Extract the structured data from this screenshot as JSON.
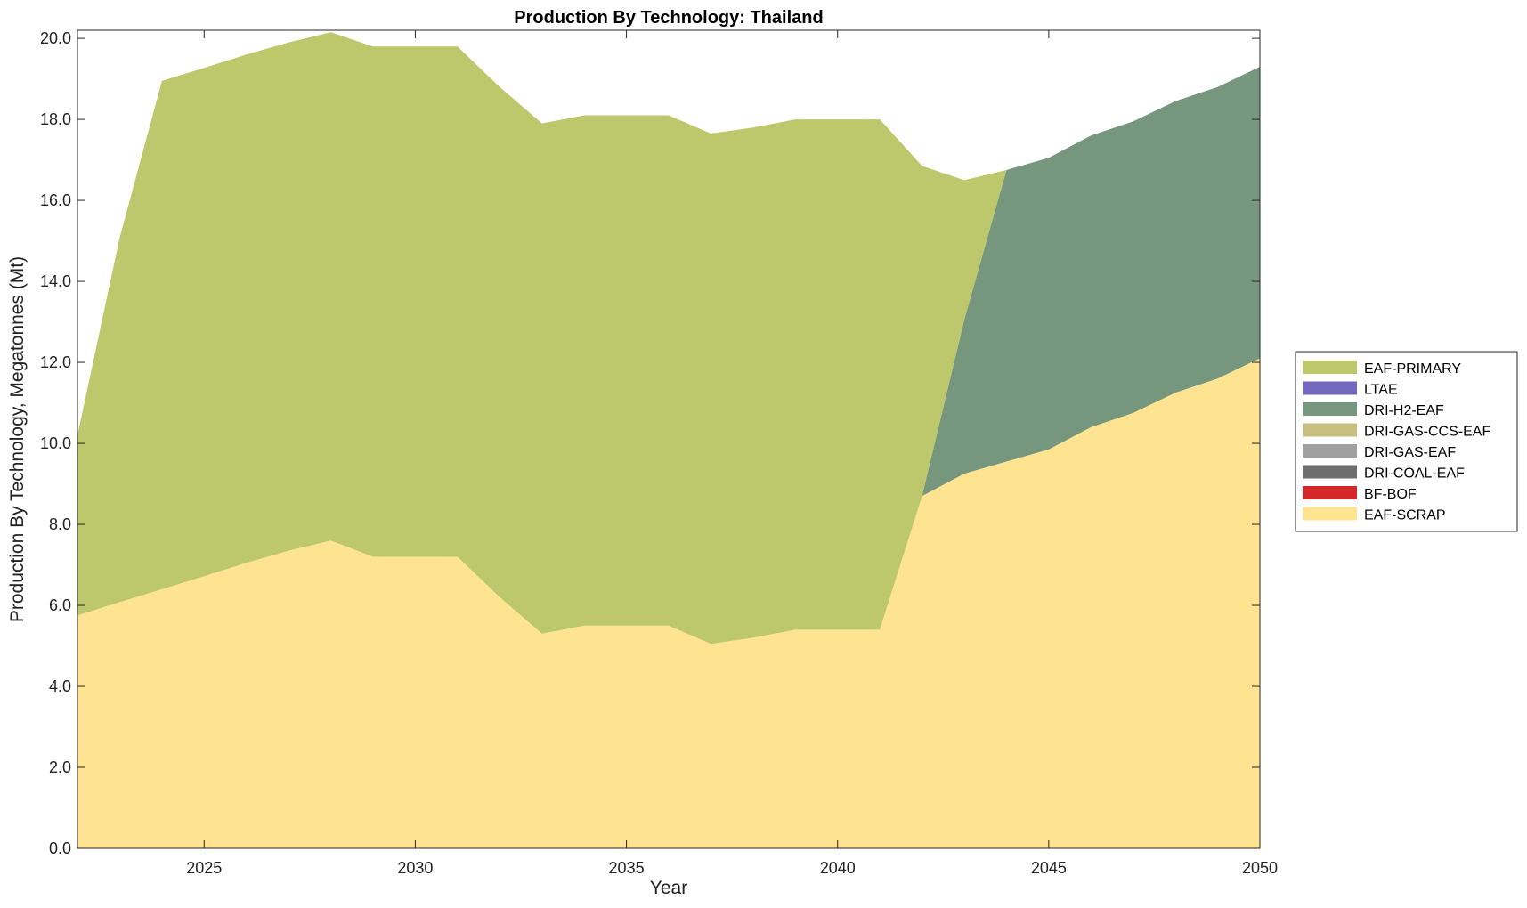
{
  "chart_data": {
    "type": "area",
    "title": "Production By Technology: Thailand",
    "xlabel": "Year",
    "ylabel": "Production By Technology, Megatonnes (Mt)",
    "xlim": [
      2022,
      2050
    ],
    "ylim": [
      0,
      20.2
    ],
    "xticks": [
      2025,
      2030,
      2035,
      2040,
      2045,
      2050
    ],
    "yticks": [
      0,
      2,
      4,
      6,
      8,
      10,
      12,
      14,
      16,
      18,
      20
    ],
    "ytick_labels": [
      "0.0",
      "2.0",
      "4.0",
      "6.0",
      "8.0",
      "10.0",
      "12.0",
      "14.0",
      "16.0",
      "18.0",
      "20.0"
    ],
    "grid": false,
    "legend_position": "right",
    "stacked": true,
    "x": [
      2022,
      2023,
      2024,
      2025,
      2026,
      2027,
      2028,
      2029,
      2030,
      2031,
      2032,
      2033,
      2034,
      2035,
      2036,
      2037,
      2038,
      2039,
      2040,
      2041,
      2042,
      2043,
      2044,
      2045,
      2046,
      2047,
      2048,
      2049,
      2050
    ],
    "series": [
      {
        "name": "EAF-SCRAP",
        "color": "#FEE391",
        "values": [
          5.75,
          6.08,
          6.4,
          6.72,
          7.05,
          7.35,
          7.6,
          7.2,
          7.2,
          7.2,
          6.2,
          5.3,
          5.5,
          5.5,
          5.5,
          5.05,
          5.2,
          5.4,
          5.4,
          5.4,
          8.7,
          9.25,
          9.55,
          9.85,
          10.4,
          10.75,
          11.25,
          11.6,
          12.1
        ]
      },
      {
        "name": "BF-BOF",
        "color": "#D62728",
        "values": [
          0,
          0,
          0,
          0,
          0,
          0,
          0,
          0,
          0,
          0,
          0,
          0,
          0,
          0,
          0,
          0,
          0,
          0,
          0,
          0,
          0,
          0,
          0,
          0,
          0,
          0,
          0,
          0,
          0
        ]
      },
      {
        "name": "DRI-COAL-EAF",
        "color": "#6E6E6E",
        "values": [
          0,
          0,
          0,
          0,
          0,
          0,
          0,
          0,
          0,
          0,
          0,
          0,
          0,
          0,
          0,
          0,
          0,
          0,
          0,
          0,
          0,
          0,
          0,
          0,
          0,
          0,
          0,
          0,
          0
        ]
      },
      {
        "name": "DRI-GAS-EAF",
        "color": "#A0A0A0",
        "values": [
          0,
          0,
          0,
          0,
          0,
          0,
          0,
          0,
          0,
          0,
          0,
          0,
          0,
          0,
          0,
          0,
          0,
          0,
          0,
          0,
          0,
          0,
          0,
          0,
          0,
          0,
          0,
          0,
          0
        ]
      },
      {
        "name": "DRI-GAS-CCS-EAF",
        "color": "#C7BE80",
        "values": [
          0,
          0,
          0,
          0,
          0,
          0,
          0,
          0,
          0,
          0,
          0,
          0,
          0,
          0,
          0,
          0,
          0,
          0,
          0,
          0,
          0,
          0,
          0,
          0,
          0,
          0,
          0,
          0,
          0
        ]
      },
      {
        "name": "DRI-H2-EAF",
        "color": "#76977D",
        "values": [
          0,
          0,
          0,
          0,
          0,
          0,
          0,
          0,
          0,
          0,
          0,
          0,
          0,
          0,
          0,
          0,
          0,
          0,
          0,
          0,
          0,
          3.8,
          7.2,
          7.2,
          7.2,
          7.2,
          7.2,
          7.2,
          7.2
        ]
      },
      {
        "name": "LTAE",
        "color": "#7468BF",
        "values": [
          0,
          0,
          0,
          0,
          0,
          0,
          0,
          0,
          0,
          0,
          0,
          0,
          0,
          0,
          0,
          0,
          0,
          0,
          0,
          0,
          0,
          0,
          0,
          0,
          0,
          0,
          0,
          0,
          0
        ]
      },
      {
        "name": "EAF-PRIMARY",
        "color": "#BDC76B",
        "values": [
          4.45,
          9.0,
          12.55,
          12.55,
          12.55,
          12.55,
          12.55,
          12.6,
          12.6,
          12.6,
          12.6,
          12.6,
          12.6,
          12.6,
          12.6,
          12.6,
          12.6,
          12.6,
          12.6,
          12.6,
          8.15,
          3.45,
          0,
          0,
          0,
          0,
          0,
          0,
          0
        ]
      }
    ],
    "legend_order": [
      "EAF-PRIMARY",
      "LTAE",
      "DRI-H2-EAF",
      "DRI-GAS-CCS-EAF",
      "DRI-GAS-EAF",
      "DRI-COAL-EAF",
      "BF-BOF",
      "EAF-SCRAP"
    ]
  }
}
